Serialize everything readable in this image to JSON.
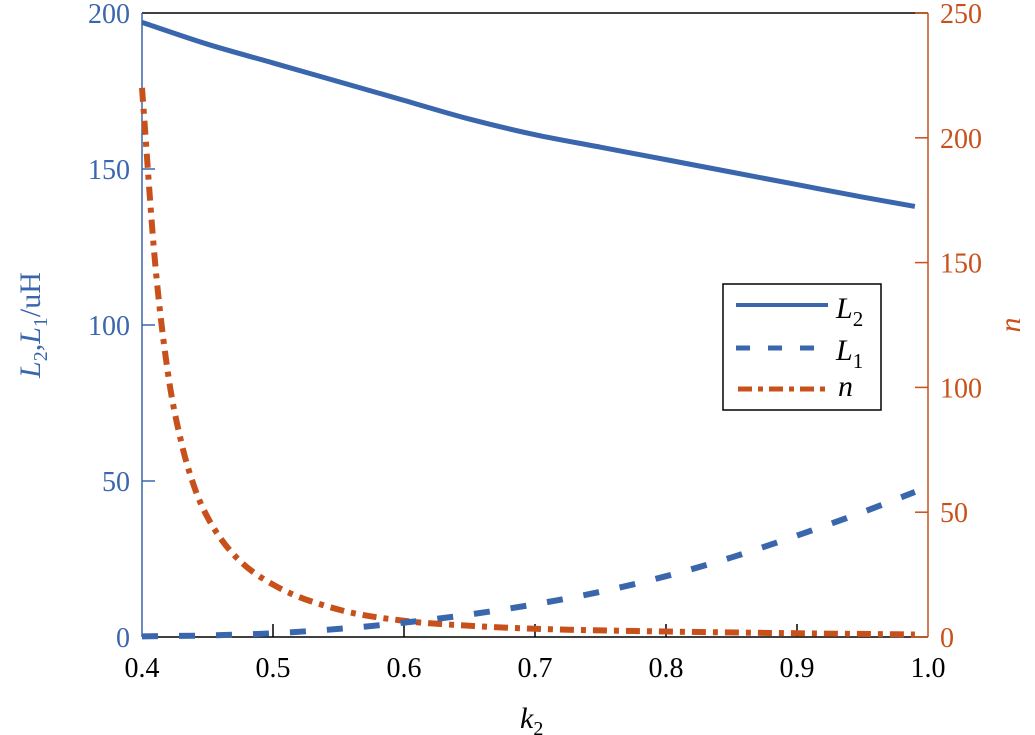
{
  "chart_data": {
    "type": "line",
    "title": "",
    "xlabel": "k2",
    "xlabel_main": "k",
    "xlabel_sub": "2",
    "ylabel_left": "L2,L1/uH",
    "ylabel_right": "n",
    "xlim": [
      0.4,
      1.0
    ],
    "ylim_left": [
      0,
      200
    ],
    "ylim_right": [
      0,
      250
    ],
    "x_ticks": [
      "0.4",
      "0.5",
      "0.6",
      "0.7",
      "0.8",
      "0.9",
      "1.0"
    ],
    "y_left_ticks": [
      "0",
      "50",
      "100",
      "150",
      "200"
    ],
    "y_right_ticks": [
      "0",
      "50",
      "100",
      "150",
      "200",
      "250"
    ],
    "grid": false,
    "legend_position": "center-right",
    "colors": {
      "left_axis": "#3a66ad",
      "right_axis": "#c8501a",
      "frame": "#000000"
    },
    "series": [
      {
        "name": "L2",
        "axis": "left",
        "style": "solid",
        "color": "#3a66ad",
        "x": [
          0.4,
          0.45,
          0.5,
          0.55,
          0.6,
          0.65,
          0.7,
          0.75,
          0.8,
          0.85,
          0.9,
          0.95,
          0.99
        ],
        "values": [
          197,
          190,
          184,
          178,
          172,
          166,
          161,
          157,
          153,
          149,
          145,
          141,
          138
        ]
      },
      {
        "name": "L1",
        "axis": "left",
        "style": "dashed",
        "color": "#3a66ad",
        "x": [
          0.4,
          0.45,
          0.5,
          0.55,
          0.6,
          0.65,
          0.7,
          0.75,
          0.8,
          0.85,
          0.9,
          0.95,
          0.99
        ],
        "values": [
          0.2,
          0.5,
          1.2,
          2.6,
          4.6,
          7.2,
          10.5,
          14.5,
          19.5,
          25.5,
          32.5,
          40,
          46.5
        ]
      },
      {
        "name": "n",
        "axis": "right",
        "style": "dash-dot",
        "color": "#c8501a",
        "x": [
          0.4,
          0.41,
          0.42,
          0.43,
          0.44,
          0.45,
          0.47,
          0.5,
          0.55,
          0.6,
          0.65,
          0.7,
          0.8,
          0.9,
          0.99
        ],
        "values": [
          220,
          150,
          105,
          78,
          60,
          48,
          33,
          21,
          11,
          6.5,
          4.5,
          3.3,
          2.2,
          1.5,
          1.0
        ]
      }
    ]
  },
  "legend": {
    "items": [
      {
        "main": "L",
        "sub": "2"
      },
      {
        "main": "L",
        "sub": "1"
      },
      {
        "main": "n",
        "sub": ""
      }
    ]
  },
  "axis_labels": {
    "left_main1": "L",
    "left_sub1": "2",
    "left_sep": ",",
    "left_main2": "L",
    "left_sub2": "1",
    "left_unit": "/uH",
    "right": "n",
    "x_main": "k",
    "x_sub": "2"
  }
}
